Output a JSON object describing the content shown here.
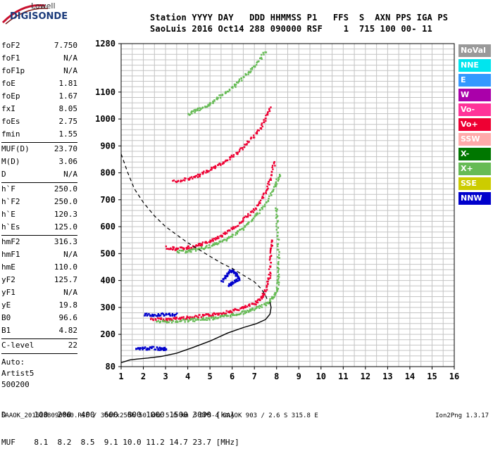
{
  "logo": {
    "line1": "Lowell",
    "line2": "DIGISONDE"
  },
  "header": {
    "line1": "Station YYYY DAY   DDD HHMMSS P1   FFS  S  AXN PPS IGA PS",
    "line2": "SaoLuis 2016 Oct14 288 090000 RSF    1  715 100 00- 11"
  },
  "params": [
    [
      {
        "label": "foF2",
        "value": "7.750"
      },
      {
        "label": "foF1",
        "value": "N/A"
      },
      {
        "label": "foF1p",
        "value": "N/A"
      },
      {
        "label": "foE",
        "value": "1.81"
      },
      {
        "label": "foEp",
        "value": "1.67"
      },
      {
        "label": "fxI",
        "value": "8.05"
      },
      {
        "label": "foEs",
        "value": "2.75"
      },
      {
        "label": "fmin",
        "value": "1.55"
      }
    ],
    [
      {
        "label": "MUF(D)",
        "value": "23.70"
      },
      {
        "label": "M(D)",
        "value": "3.06"
      },
      {
        "label": "D",
        "value": "N/A"
      }
    ],
    [
      {
        "label": "h`F",
        "value": "250.0"
      },
      {
        "label": "h`F2",
        "value": "250.0"
      },
      {
        "label": "h`E",
        "value": "120.3"
      },
      {
        "label": "h`Es",
        "value": "125.0"
      }
    ],
    [
      {
        "label": "hmF2",
        "value": "316.3"
      },
      {
        "label": "hmF1",
        "value": "N/A"
      },
      {
        "label": "hmE",
        "value": "110.0"
      },
      {
        "label": "yF2",
        "value": "125.7"
      },
      {
        "label": "yF1",
        "value": "N/A"
      },
      {
        "label": "yE",
        "value": "19.8"
      },
      {
        "label": "B0",
        "value": "96.6"
      },
      {
        "label": "B1",
        "value": "4.82"
      }
    ],
    [
      {
        "label": "C-level",
        "value": "22"
      }
    ]
  ],
  "auto": [
    "Auto:",
    "Artist5",
    "500200"
  ],
  "legend": [
    {
      "label": "NoVal",
      "color": "#999999"
    },
    {
      "label": "NNE",
      "color": "#00e5ee"
    },
    {
      "label": "E",
      "color": "#3399ff"
    },
    {
      "label": "W",
      "color": "#aa00aa"
    },
    {
      "label": "Vo-",
      "color": "#ff3399"
    },
    {
      "label": "Vo+",
      "color": "#ee0033"
    },
    {
      "label": "SSW",
      "color": "#ffaaaa"
    },
    {
      "label": "X-",
      "color": "#007700"
    },
    {
      "label": "X+",
      "color": "#66bb55"
    },
    {
      "label": "SSE",
      "color": "#cccc00"
    },
    {
      "label": "NNW",
      "color": "#0000cc"
    }
  ],
  "muf_table": {
    "d_label": "D",
    "muf_label": "MUF",
    "distances": [
      "100",
      "200",
      "400",
      "600",
      "800",
      "1000",
      "1500",
      "3000"
    ],
    "distance_unit": "[km]",
    "mufs": [
      "8.1",
      "8.2",
      "8.5",
      "9.1",
      "10.0",
      "11.2",
      "14.7",
      "23.7"
    ],
    "muf_unit": "[MHz]"
  },
  "footer": "SAAOK_2016288090000.RSF / 300fx256h 50 kHz 5.0 km / DPS-4 SAAOK 903 / 2.6 S 315.8 E",
  "version": "Ion2Png 1.3.17",
  "chart_data": {
    "type": "scatter",
    "title": "",
    "xlabel": "",
    "ylabel": "",
    "xlim": [
      1,
      16
    ],
    "ylim": [
      80,
      1280
    ],
    "x_ticks": [
      "1",
      "2",
      "3",
      "4",
      "5",
      "6",
      "7",
      "8",
      "9",
      "10",
      "11",
      "12",
      "13",
      "14",
      "15",
      "16"
    ],
    "y_ticks": [
      {
        "value": 80,
        "label": "80"
      },
      {
        "value": 200,
        "label": "200"
      },
      {
        "value": 300,
        "label": "300"
      },
      {
        "value": 400,
        "label": "400"
      },
      {
        "value": 500,
        "label": "500"
      },
      {
        "value": 600,
        "label": "600"
      },
      {
        "value": 700,
        "label": "700"
      },
      {
        "value": 800,
        "label": "800"
      },
      {
        "value": 900,
        "label": "900"
      },
      {
        "value": 1000,
        "label": "1000"
      },
      {
        "value": 1100,
        "label": "1100"
      },
      {
        "value": 1280,
        "label": "1280"
      }
    ],
    "grid": true,
    "profile_solid": [
      [
        1.0,
        95
      ],
      [
        1.4,
        105
      ],
      [
        1.7,
        108
      ],
      [
        2.2,
        112
      ],
      [
        2.8,
        118
      ],
      [
        3.5,
        130
      ],
      [
        4.2,
        150
      ],
      [
        5.0,
        175
      ],
      [
        5.8,
        205
      ],
      [
        6.5,
        225
      ],
      [
        7.1,
        240
      ],
      [
        7.5,
        255
      ],
      [
        7.7,
        275
      ],
      [
        7.75,
        300
      ],
      [
        7.7,
        320
      ]
    ],
    "profile_dashed": [
      [
        1.0,
        870
      ],
      [
        1.3,
        800
      ],
      [
        1.6,
        740
      ],
      [
        2.0,
        690
      ],
      [
        2.5,
        640
      ],
      [
        3.0,
        600
      ],
      [
        3.5,
        570
      ],
      [
        4.0,
        540
      ],
      [
        4.5,
        515
      ],
      [
        5.0,
        490
      ],
      [
        5.5,
        465
      ],
      [
        6.0,
        445
      ],
      [
        6.5,
        420
      ],
      [
        7.0,
        395
      ],
      [
        7.3,
        370
      ],
      [
        7.5,
        345
      ],
      [
        7.6,
        325
      ]
    ],
    "traces": [
      {
        "order": "F2 1st hop O",
        "color": "#ee0033",
        "points": [
          [
            2.3,
            260
          ],
          [
            3.0,
            258
          ],
          [
            3.5,
            262
          ],
          [
            4.0,
            265
          ],
          [
            4.5,
            270
          ],
          [
            5.0,
            275
          ],
          [
            5.5,
            282
          ],
          [
            6.0,
            290
          ],
          [
            6.5,
            302
          ],
          [
            7.0,
            318
          ],
          [
            7.3,
            340
          ],
          [
            7.5,
            370
          ],
          [
            7.65,
            420
          ],
          [
            7.72,
            500
          ],
          [
            7.75,
            560
          ]
        ]
      },
      {
        "order": "F2 1st hop X",
        "color": "#66bb55",
        "points": [
          [
            2.6,
            250
          ],
          [
            3.2,
            250
          ],
          [
            4.0,
            255
          ],
          [
            4.5,
            258
          ],
          [
            5.0,
            262
          ],
          [
            5.5,
            268
          ],
          [
            6.0,
            275
          ],
          [
            6.5,
            285
          ],
          [
            7.0,
            298
          ],
          [
            7.5,
            315
          ],
          [
            7.8,
            340
          ],
          [
            8.0,
            370
          ],
          [
            8.05,
            420
          ],
          [
            8.05,
            500
          ],
          [
            8.0,
            600
          ],
          [
            7.95,
            680
          ]
        ]
      },
      {
        "order": "F2 2nd hop O",
        "color": "#ee0033",
        "points": [
          [
            3.0,
            525
          ],
          [
            3.5,
            520
          ],
          [
            4.0,
            525
          ],
          [
            4.5,
            535
          ],
          [
            5.0,
            550
          ],
          [
            5.5,
            570
          ],
          [
            6.0,
            595
          ],
          [
            6.5,
            630
          ],
          [
            7.0,
            670
          ],
          [
            7.4,
            720
          ],
          [
            7.7,
            780
          ],
          [
            7.9,
            850
          ]
        ]
      },
      {
        "order": "F2 2nd hop X",
        "color": "#66bb55",
        "points": [
          [
            3.5,
            510
          ],
          [
            4.0,
            512
          ],
          [
            4.5,
            520
          ],
          [
            5.0,
            530
          ],
          [
            5.5,
            548
          ],
          [
            6.0,
            570
          ],
          [
            6.5,
            600
          ],
          [
            7.0,
            640
          ],
          [
            7.5,
            690
          ],
          [
            7.9,
            750
          ],
          [
            8.1,
            800
          ]
        ]
      },
      {
        "order": "F2 3rd hop O",
        "color": "#ee0033",
        "points": [
          [
            3.3,
            770
          ],
          [
            4.0,
            780
          ],
          [
            4.5,
            795
          ],
          [
            5.0,
            815
          ],
          [
            5.5,
            840
          ],
          [
            6.0,
            865
          ],
          [
            6.5,
            900
          ],
          [
            7.0,
            945
          ],
          [
            7.4,
            990
          ],
          [
            7.7,
            1050
          ]
        ]
      },
      {
        "order": "F2 3rd hop X",
        "color": "#66bb55",
        "points": [
          [
            4.0,
            1020
          ],
          [
            4.5,
            1040
          ],
          [
            5.0,
            1060
          ],
          [
            5.5,
            1090
          ],
          [
            6.0,
            1120
          ],
          [
            6.5,
            1160
          ],
          [
            7.0,
            1200
          ],
          [
            7.5,
            1260
          ]
        ]
      },
      {
        "order": "E/Es",
        "color": "#0000cc",
        "points": [
          [
            1.6,
            150
          ],
          [
            2.0,
            150
          ],
          [
            2.4,
            152
          ],
          [
            2.8,
            148
          ],
          [
            3.0,
            150
          ]
        ]
      },
      {
        "order": "Es multiple",
        "color": "#0000cc",
        "points": [
          [
            2.0,
            275
          ],
          [
            2.5,
            275
          ],
          [
            3.0,
            278
          ],
          [
            3.5,
            276
          ]
        ]
      },
      {
        "order": "Spread F",
        "color": "#0000cc",
        "points": [
          [
            5.5,
            400
          ],
          [
            5.7,
            420
          ],
          [
            5.9,
            440
          ],
          [
            6.1,
            430
          ],
          [
            6.3,
            410
          ],
          [
            6.0,
            395
          ],
          [
            5.8,
            385
          ]
        ]
      }
    ]
  }
}
